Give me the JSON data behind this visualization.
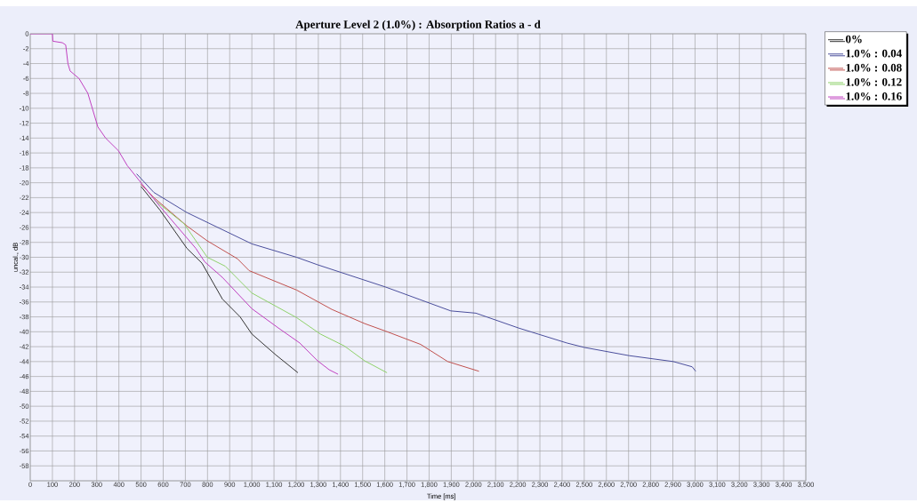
{
  "chart_data": {
    "type": "line",
    "title": "Aperture Level 2 (1.0%) : Absorption Ratios a - d",
    "xlabel": "Time [ms]",
    "ylabel": "uncal., dB",
    "xlim": [
      0,
      3500
    ],
    "ylim": [
      -60,
      0
    ],
    "xticks": [
      {
        "value": 0,
        "label": "0"
      },
      100,
      200,
      300,
      400,
      500,
      600,
      700,
      800,
      900,
      {
        "value": 1000,
        "label": "1,000"
      },
      {
        "value": 1100,
        "label": "1,100"
      },
      {
        "value": 1200,
        "label": "1,200"
      },
      {
        "value": 1300,
        "label": "1,300"
      },
      {
        "value": 1400,
        "label": "1,400"
      },
      {
        "value": 1500,
        "label": "1,500"
      },
      {
        "value": 1600,
        "label": "1,600"
      },
      {
        "value": 1700,
        "label": "1,700"
      },
      {
        "value": 1800,
        "label": "1,800"
      },
      {
        "value": 1900,
        "label": "1,900"
      },
      {
        "value": 2000,
        "label": "2,000"
      },
      {
        "value": 2100,
        "label": "2,100"
      },
      {
        "value": 2200,
        "label": "2,200"
      },
      {
        "value": 2300,
        "label": "2,300"
      },
      {
        "value": 2400,
        "label": "2,400"
      },
      {
        "value": 2500,
        "label": "2,500"
      },
      {
        "value": 2600,
        "label": "2,600"
      },
      {
        "value": 2700,
        "label": "2,700"
      },
      {
        "value": 2800,
        "label": "2,800"
      },
      {
        "value": 2900,
        "label": "2,900"
      },
      {
        "value": 3000,
        "label": "3,000"
      },
      {
        "value": 3100,
        "label": "3,100"
      },
      {
        "value": 3200,
        "label": "3,200"
      },
      {
        "value": 3300,
        "label": "3,300"
      },
      {
        "value": 3400,
        "label": "3,400"
      },
      {
        "value": 3500,
        "label": "3,500"
      }
    ],
    "yticks": [
      0,
      -2,
      -4,
      -6,
      -8,
      -10,
      -12,
      -14,
      -16,
      -18,
      -20,
      -22,
      -24,
      -26,
      -28,
      -30,
      -32,
      -34,
      -36,
      -38,
      -40,
      -42,
      -44,
      -46,
      -48,
      -50,
      -52,
      -54,
      -56,
      -58,
      {
        "value": -60,
        "label": null
      }
    ],
    "grid": true,
    "legend": "top right",
    "marker": "none",
    "line_style": "solid",
    "series": [
      {
        "name": "0%",
        "color": "#333333",
        "x": [
          500,
          586,
          707,
          775,
          867,
          947,
          1000,
          1108,
          1208
        ],
        "values": [
          -20.5,
          -23.7,
          -28.8,
          -30.8,
          -35.6,
          -38,
          -40.3,
          -43.1,
          -45.5
        ]
      },
      {
        "name": "1.0% : 0.04",
        "color": "#4a4e9c",
        "x": [
          480,
          558,
          707,
          1000,
          1202,
          1296,
          1604,
          1898,
          2011,
          2204,
          2421,
          2500,
          2702,
          2902,
          2987,
          3003
        ],
        "values": [
          -18.8,
          -21.3,
          -24,
          -28.2,
          -30,
          -31,
          -34,
          -37.2,
          -37.5,
          -39.5,
          -41.5,
          -42.1,
          -43.2,
          -44,
          -44.7,
          -45.3
        ]
      },
      {
        "name": "1.0% : 0.08",
        "color": "#c0504d",
        "x": [
          500,
          558,
          707,
          799,
          935,
          988,
          1202,
          1361,
          1509,
          1602,
          1762,
          1884,
          2025
        ],
        "values": [
          -20.2,
          -22,
          -25.8,
          -27.8,
          -30.2,
          -31.8,
          -34.4,
          -37,
          -38.9,
          -39.9,
          -41.7,
          -44,
          -45.3
        ]
      },
      {
        "name": "1.0% : 0.12",
        "color": "#8fd16a",
        "x": [
          560,
          694,
          799,
          880,
          1000,
          1202,
          1309,
          1417,
          1509,
          1610
        ],
        "values": [
          -22.3,
          -25.5,
          -30,
          -31.2,
          -34.8,
          -38.1,
          -40.3,
          -41.9,
          -43.9,
          -45.5
        ]
      },
      {
        "name": "1.0% : 0.16",
        "color": "#c040c0",
        "x": [
          0,
          100,
          102,
          145,
          160,
          170,
          180,
          220,
          260,
          305,
          340,
          398,
          438,
          586,
          747,
          787,
          867,
          1000,
          1120,
          1216,
          1297,
          1349,
          1389
        ],
        "values": [
          0,
          0,
          -1,
          -1.2,
          -1.5,
          -4,
          -5,
          -6,
          -8,
          -12.5,
          -14,
          -15.7,
          -17.7,
          -23.2,
          -28.8,
          -30.6,
          -32.7,
          -36.9,
          -39.5,
          -41.5,
          -43.9,
          -45.1,
          -45.7
        ]
      }
    ]
  }
}
